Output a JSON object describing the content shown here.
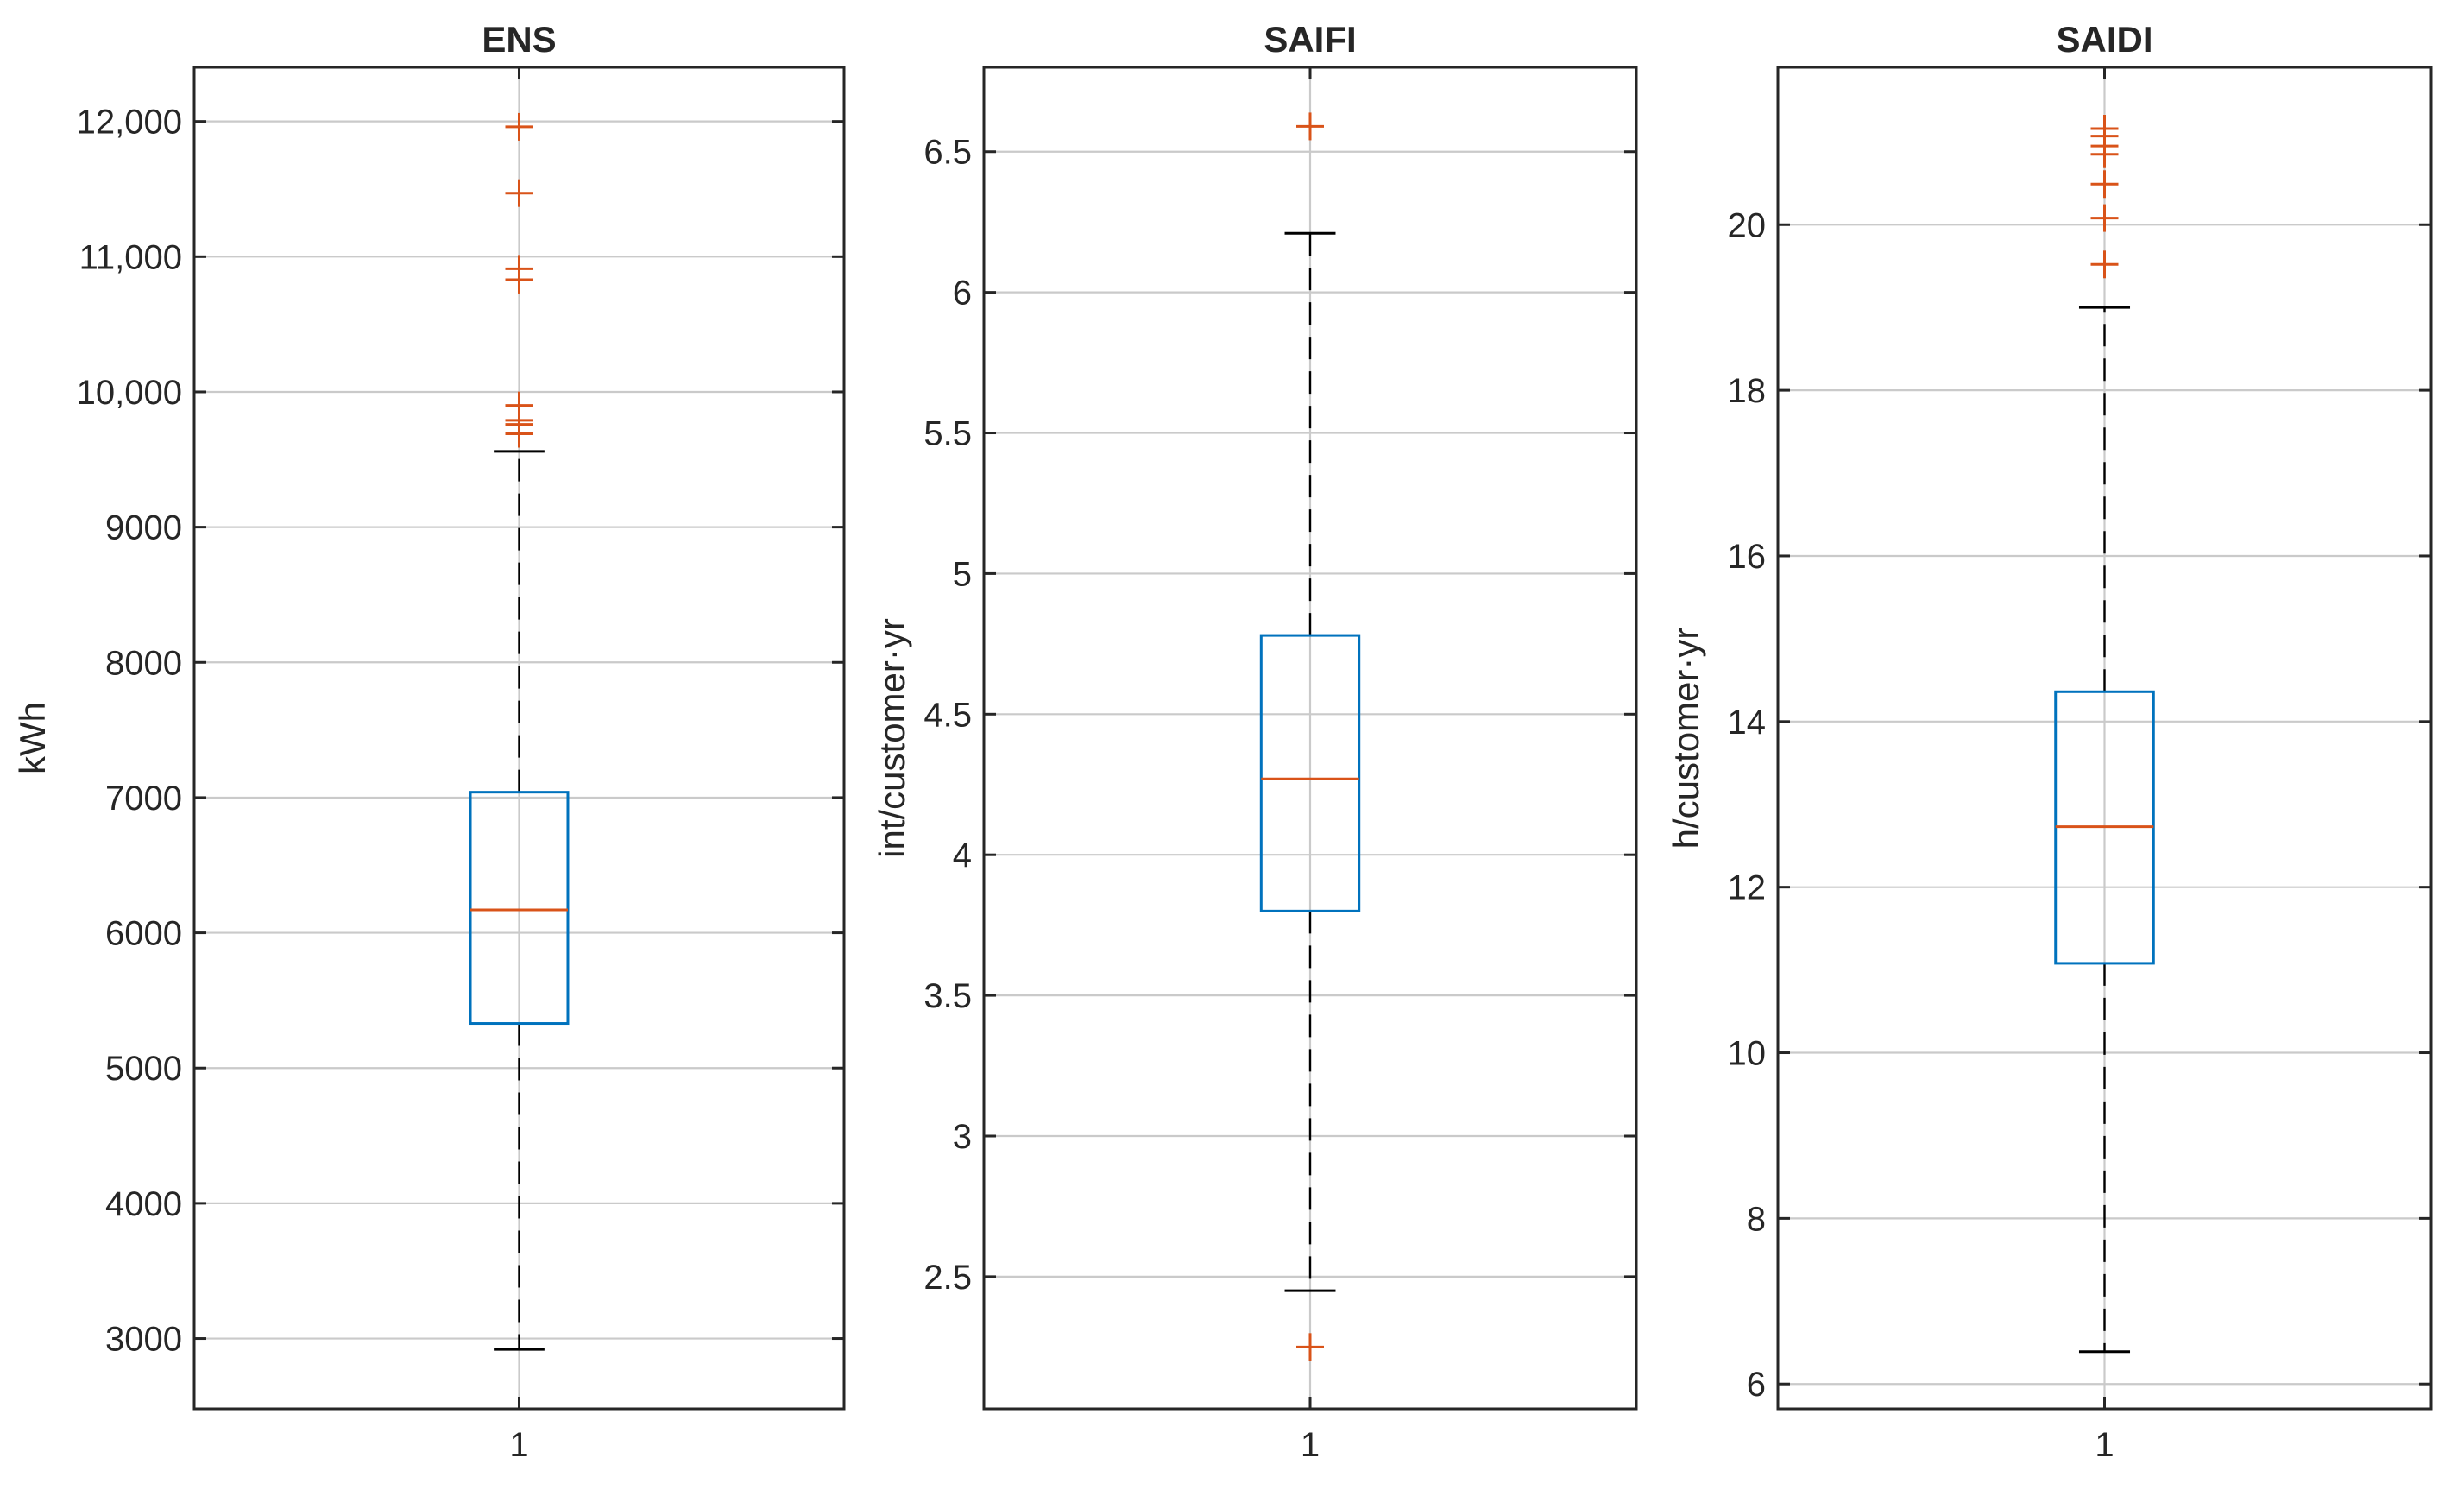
{
  "chart_data": [
    {
      "type": "box",
      "title": "ENS",
      "ylabel": "kWh",
      "xticklabels": [
        "1"
      ],
      "ylim": [
        2480,
        12400
      ],
      "yticks": [
        3000,
        4000,
        5000,
        6000,
        7000,
        8000,
        9000,
        10000,
        11000,
        12000
      ],
      "yticklabels": [
        "3000",
        "4000",
        "5000",
        "6000",
        "7000",
        "8000",
        "9000",
        "10,000",
        "11,000",
        "12,000"
      ],
      "grid": true,
      "box": {
        "q1": 5330,
        "median": 6170,
        "q3": 7040,
        "whisker_low": 2920,
        "whisker_high": 9560,
        "outliers": [
          9690,
          9760,
          9790,
          9900,
          10830,
          10910,
          11470,
          11960
        ]
      }
    },
    {
      "type": "box",
      "title": "SAIFI",
      "ylabel": "int/customer·yr",
      "xticklabels": [
        "1"
      ],
      "ylim": [
        2.03,
        6.8
      ],
      "yticks": [
        2.5,
        3,
        3.5,
        4,
        4.5,
        5,
        5.5,
        6,
        6.5
      ],
      "yticklabels": [
        "2.5",
        "3",
        "3.5",
        "4",
        "4.5",
        "5",
        "5.5",
        "6",
        "6.5"
      ],
      "grid": true,
      "box": {
        "q1": 3.8,
        "median": 4.27,
        "q3": 4.78,
        "whisker_low": 2.45,
        "whisker_high": 6.21,
        "outliers": [
          2.25,
          6.59
        ]
      }
    },
    {
      "type": "box",
      "title": "SAIDI",
      "ylabel": "h/customer·yr",
      "xticklabels": [
        "1"
      ],
      "ylim": [
        5.7,
        21.9
      ],
      "yticks": [
        6,
        8,
        10,
        12,
        14,
        16,
        18,
        20
      ],
      "yticklabels": [
        "6",
        "8",
        "10",
        "12",
        "14",
        "16",
        "18",
        "20"
      ],
      "grid": true,
      "box": {
        "q1": 11.08,
        "median": 12.73,
        "q3": 14.36,
        "whisker_low": 6.39,
        "whisker_high": 19.0,
        "outliers": [
          19.52,
          20.08,
          20.49,
          20.85,
          20.95,
          21.07,
          21.16
        ]
      }
    }
  ],
  "colors": {
    "box": "#0072BD",
    "median": "#D95319",
    "outlier": "#D95319",
    "whisker": "#000000",
    "grid": "#CACACA",
    "axis": "#262626"
  }
}
